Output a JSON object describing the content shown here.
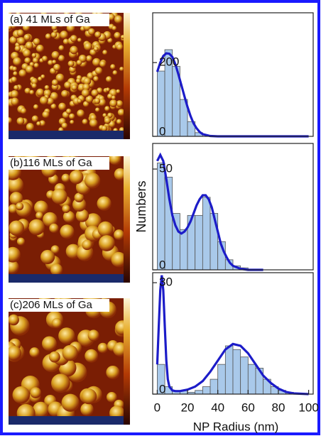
{
  "chart_data": [
    {
      "type": "histogram",
      "title": "(a) 41 MLs of Ga",
      "bins": [
        0,
        5,
        10,
        15,
        20,
        25,
        30
      ],
      "counts": [
        177,
        235,
        190,
        100,
        40,
        10
      ],
      "fit": {
        "x": [
          0,
          2,
          4,
          6,
          8,
          10,
          12,
          14,
          16,
          18,
          20,
          22,
          24,
          26,
          28,
          30,
          35,
          40,
          50,
          60,
          80,
          100
        ],
        "values": [
          175,
          200,
          218,
          225,
          224,
          215,
          195,
          168,
          138,
          108,
          80,
          55,
          35,
          22,
          12,
          6,
          1,
          0,
          0,
          0,
          0,
          0
        ]
      },
      "color": "#a9c9ea",
      "fit_color": "#1c1cc8",
      "xlim": [
        -3,
        103
      ],
      "ylim": [
        0,
        335
      ],
      "yticks": [
        0,
        200
      ]
    },
    {
      "type": "histogram",
      "title": "(b)116 MLs of Ga",
      "bins": [
        0,
        5,
        10,
        15,
        20,
        25,
        30,
        35,
        40,
        45,
        50,
        55,
        60
      ],
      "counts": [
        53,
        46,
        28,
        20,
        27,
        27,
        36,
        28,
        14,
        5,
        2,
        1
      ],
      "fit": {
        "x": [
          0,
          2,
          4,
          6,
          8,
          10,
          12,
          14,
          16,
          18,
          20,
          22,
          24,
          26,
          28,
          30,
          32,
          34,
          36,
          38,
          40,
          42,
          44,
          46,
          48,
          50,
          55,
          60,
          70
        ],
        "values": [
          54,
          57,
          54,
          45,
          35,
          27,
          22,
          19,
          18,
          19,
          21,
          24,
          28,
          32,
          35,
          37,
          37,
          35,
          31,
          25,
          19,
          13,
          9,
          6,
          3.5,
          2,
          0.5,
          0,
          0
        ]
      },
      "color": "#a9c9ea",
      "fit_color": "#1c1cc8",
      "xlim": [
        -3,
        103
      ],
      "ylim": [
        0,
        62.7
      ],
      "yticks": [
        0,
        50
      ],
      "ylabel": "Numbers"
    },
    {
      "type": "histogram",
      "title": "(c)206 MLs of Ga",
      "bins": [
        0,
        5,
        10,
        15,
        20,
        25,
        30,
        35,
        40,
        45,
        50,
        55,
        60,
        65,
        70,
        75,
        80,
        85,
        90
      ],
      "counts": [
        8,
        2,
        1,
        1,
        0.5,
        1,
        2,
        4,
        8,
        13,
        12,
        10,
        8,
        7,
        4,
        2,
        1,
        0.5
      ],
      "fit": {
        "x": [
          0,
          1,
          2,
          3,
          4,
          5,
          6,
          7,
          8,
          10,
          12,
          15,
          20,
          25,
          30,
          35,
          40,
          45,
          50,
          55,
          60,
          65,
          70,
          75,
          80,
          85,
          90,
          100
        ],
        "values": [
          8,
          18,
          28,
          32,
          28,
          18,
          9,
          4,
          2,
          1,
          0.8,
          0.8,
          1.2,
          2,
          3.5,
          6,
          9,
          12,
          13.5,
          13,
          11,
          8,
          5,
          3,
          1.5,
          0.6,
          0.2,
          0
        ]
      },
      "color": "#a9c9ea",
      "fit_color": "#1c1cc8",
      "xlim": [
        -3,
        103
      ],
      "ylim": [
        0,
        32.7
      ],
      "yticks": [
        0,
        30
      ],
      "xticks": [
        0,
        20,
        40,
        60,
        80,
        100
      ],
      "xlabel": "NP Radius (nm)"
    }
  ]
}
